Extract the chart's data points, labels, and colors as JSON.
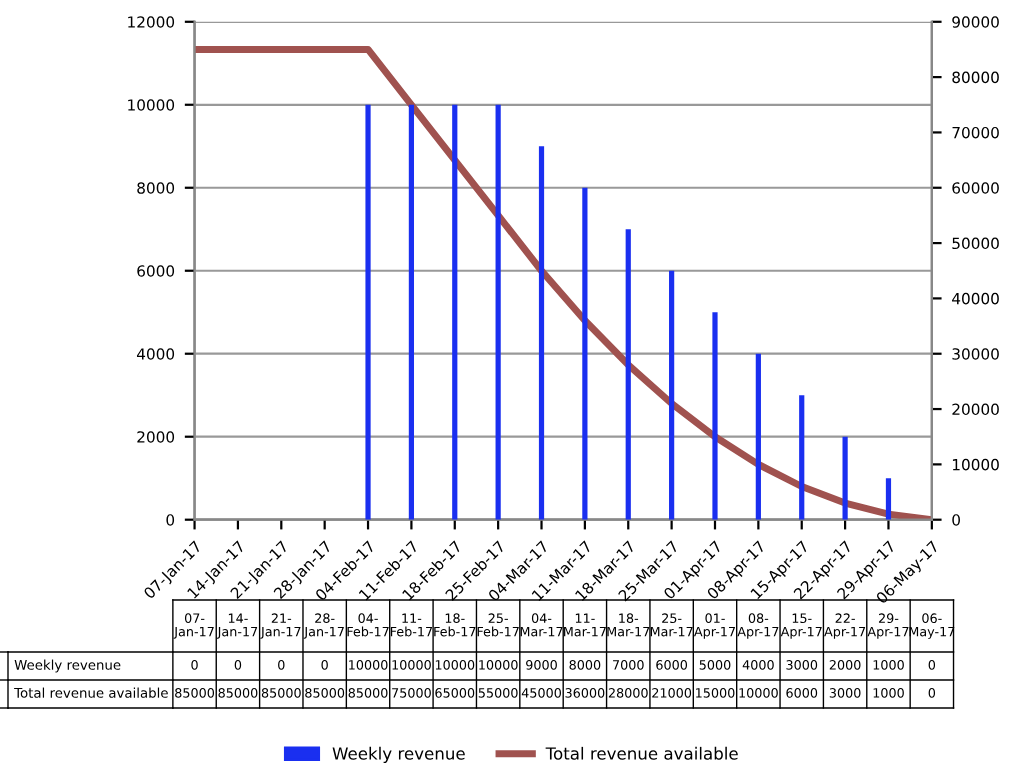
{
  "chart_data": {
    "type": "bar",
    "categories": [
      "07-Jan-17",
      "14-Jan-17",
      "21-Jan-17",
      "28-Jan-17",
      "04-Feb-17",
      "11-Feb-17",
      "18-Feb-17",
      "25-Feb-17",
      "04-Mar-17",
      "11-Mar-17",
      "18-Mar-17",
      "25-Mar-17",
      "01-Apr-17",
      "08-Apr-17",
      "15-Apr-17",
      "22-Apr-17",
      "29-Apr-17",
      "06-May-17"
    ],
    "series": [
      {
        "name": "Weekly revenue",
        "color": "#1a2ff0",
        "values": [
          0,
          0,
          0,
          0,
          10000,
          10000,
          10000,
          10000,
          9000,
          8000,
          7000,
          6000,
          5000,
          4000,
          3000,
          2000,
          1000,
          0
        ]
      },
      {
        "name": "Total revenue available",
        "type": "line",
        "axis": "y2",
        "color": "#a0524f",
        "values": [
          85000,
          85000,
          85000,
          85000,
          85000,
          75000,
          65000,
          55000,
          45000,
          36000,
          28000,
          21000,
          15000,
          10000,
          6000,
          3000,
          1000,
          0
        ]
      }
    ],
    "ylim": [
      0,
      12000
    ],
    "yticks": [
      0,
      2000,
      4000,
      6000,
      8000,
      10000,
      12000
    ],
    "y2lim": [
      0,
      90000
    ],
    "y2ticks": [
      0,
      10000,
      20000,
      30000,
      40000,
      50000,
      60000,
      70000,
      80000,
      90000
    ],
    "grid": "y",
    "legend": "bottom",
    "data_labels": true,
    "marker": "none",
    "line_style": "solid"
  }
}
